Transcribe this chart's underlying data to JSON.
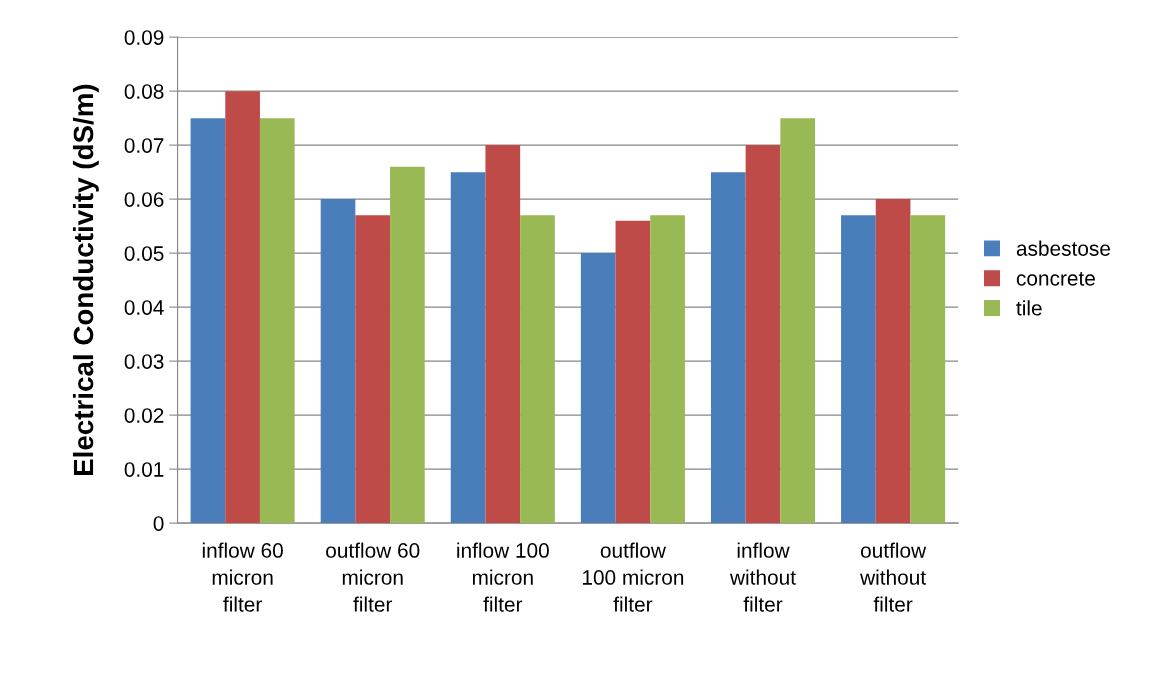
{
  "chart_data": {
    "type": "bar",
    "ylabel": "Electrical Conductivity (dS/m)",
    "categories": [
      "inflow 60\nmicron\nfilter",
      "outflow 60\nmicron\nfilter",
      "inflow 100\nmicron\nfilter",
      "outflow\n100 micron\nfilter",
      "inflow\nwithout\nfilter",
      "outflow\nwithout\nfilter"
    ],
    "series": [
      {
        "name": "asbestose",
        "color": "#4a7ebb",
        "values": [
          0.075,
          0.06,
          0.065,
          0.05,
          0.065,
          0.057
        ]
      },
      {
        "name": "concrete",
        "color": "#be4b48",
        "values": [
          0.08,
          0.057,
          0.07,
          0.056,
          0.07,
          0.06
        ]
      },
      {
        "name": "tile",
        "color": "#98b954",
        "values": [
          0.075,
          0.066,
          0.057,
          0.057,
          0.075,
          0.057
        ]
      }
    ],
    "ylim": [
      0,
      0.09
    ],
    "yticks": [
      {
        "value": 0,
        "label": "0"
      },
      0.01,
      0.02,
      0.03,
      0.04,
      0.05,
      0.06,
      0.07,
      0.08,
      0.09
    ],
    "grid": "y",
    "legend": "right"
  }
}
